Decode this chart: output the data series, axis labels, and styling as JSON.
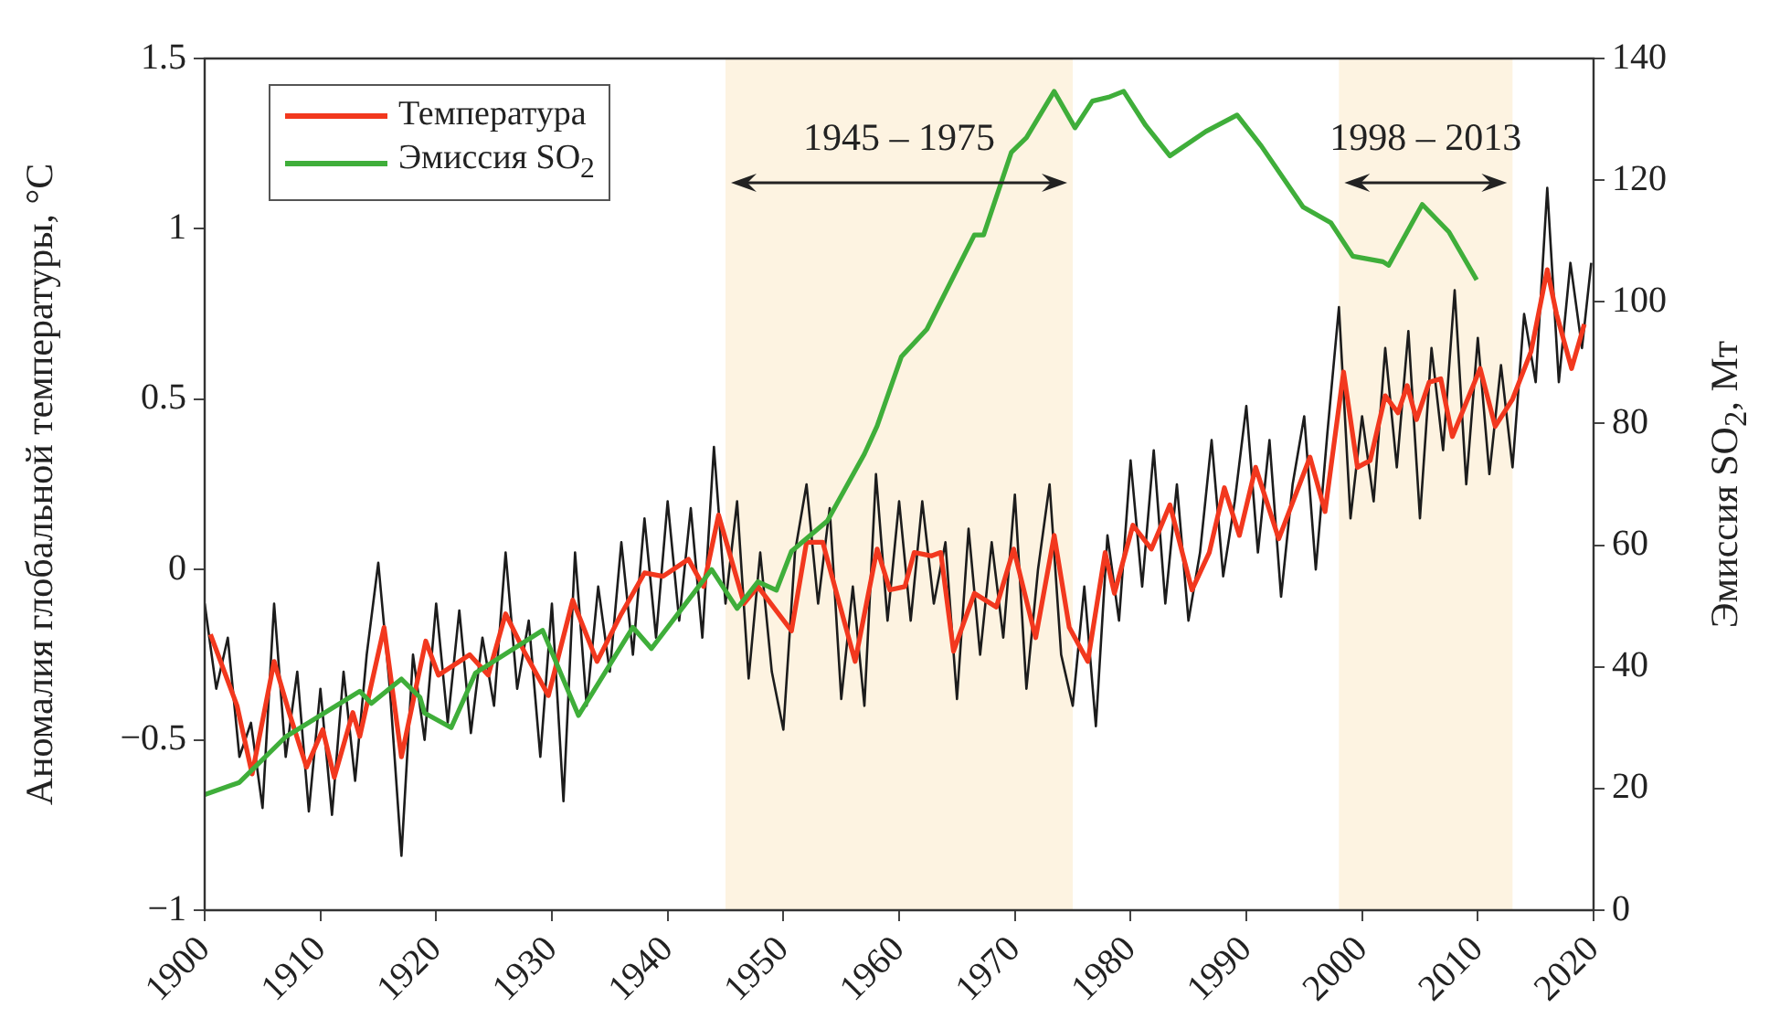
{
  "chart_data": {
    "type": "line",
    "xlabel": null,
    "ylabel": "Аномалия глобальной температуры, °C",
    "y2label": "Эмиссия SO$_{2}$, Мт",
    "xlim": [
      1900,
      2020
    ],
    "xticks": [
      1900,
      1910,
      1920,
      1930,
      1940,
      1950,
      1960,
      1970,
      1980,
      1990,
      2000,
      2010,
      2020
    ],
    "ylim": [
      -1,
      1.5
    ],
    "yticks": [
      {
        "value": -1,
        "label": "−1"
      },
      {
        "value": -0.5,
        "label": "−0.5"
      },
      0,
      0.5,
      1,
      1.5
    ],
    "y2lim": [
      0,
      140
    ],
    "y2ticks": [
      0,
      20,
      40,
      60,
      80,
      100,
      120,
      140
    ],
    "grid": false,
    "legend": "top left",
    "marker": "none",
    "line_style": "solid",
    "bands": [
      {
        "axis": "x",
        "from": 1945,
        "to": 1975,
        "label": "1945 – 1975",
        "color": "#fdf3e1"
      },
      {
        "axis": "x",
        "from": 1998,
        "to": 2013,
        "label": "1998 – 2013",
        "color": "#fdf3e1"
      }
    ],
    "series": [
      {
        "color": "#1c1c1c",
        "x": [
          1900,
          1901,
          1902,
          1903,
          1904,
          1905,
          1906,
          1907,
          1908,
          1909,
          1910,
          1911,
          1912,
          1913,
          1914,
          1915,
          1916,
          1917,
          1918,
          1919,
          1920,
          1921,
          1922,
          1923,
          1924,
          1925,
          1926,
          1927,
          1928,
          1929,
          1930,
          1931,
          1932,
          1933,
          1934,
          1935,
          1936,
          1937,
          1938,
          1939,
          1940,
          1941,
          1942,
          1943,
          1944,
          1945,
          1946,
          1947,
          1948,
          1949,
          1950,
          1951,
          1952,
          1953,
          1954,
          1955,
          1956,
          1957,
          1958,
          1959,
          1960,
          1961,
          1962,
          1963,
          1964,
          1965,
          1966,
          1967,
          1968,
          1969,
          1970,
          1971,
          1972,
          1973,
          1974,
          1975,
          1976,
          1977,
          1978,
          1979,
          1980,
          1981,
          1982,
          1983,
          1984,
          1985,
          1986,
          1987,
          1988,
          1989,
          1990,
          1991,
          1992,
          1993,
          1994,
          1995,
          1996,
          1997,
          1998,
          1999,
          2000,
          2001,
          2002,
          2003,
          2004,
          2005,
          2006,
          2007,
          2008,
          2009,
          2010,
          2011,
          2012,
          2013,
          2014,
          2015,
          2016,
          2017,
          2018,
          2019,
          2019.8
        ],
        "values": [
          -0.1,
          -0.35,
          -0.2,
          -0.55,
          -0.45,
          -0.7,
          -0.1,
          -0.55,
          -0.3,
          -0.71,
          -0.35,
          -0.72,
          -0.3,
          -0.62,
          -0.25,
          0.02,
          -0.35,
          -0.84,
          -0.25,
          -0.5,
          -0.1,
          -0.45,
          -0.12,
          -0.48,
          -0.2,
          -0.4,
          0.05,
          -0.35,
          -0.15,
          -0.55,
          -0.1,
          -0.68,
          0.05,
          -0.4,
          -0.05,
          -0.3,
          0.08,
          -0.25,
          0.15,
          -0.2,
          0.2,
          -0.15,
          0.18,
          -0.2,
          0.36,
          -0.1,
          0.2,
          -0.32,
          0.05,
          -0.3,
          -0.47,
          0.05,
          0.25,
          -0.1,
          0.18,
          -0.38,
          -0.05,
          -0.4,
          0.28,
          -0.15,
          0.2,
          -0.15,
          0.2,
          -0.1,
          0.08,
          -0.38,
          0.12,
          -0.25,
          0.08,
          -0.2,
          0.22,
          -0.35,
          0,
          0.25,
          -0.25,
          -0.4,
          -0.05,
          -0.46,
          0.1,
          -0.15,
          0.32,
          -0.05,
          0.35,
          -0.1,
          0.25,
          -0.15,
          0.05,
          0.38,
          -0.02,
          0.2,
          0.48,
          0.05,
          0.38,
          -0.08,
          0.25,
          0.45,
          0,
          0.4,
          0.77,
          0.15,
          0.45,
          0.2,
          0.65,
          0.3,
          0.7,
          0.15,
          0.65,
          0.35,
          0.82,
          0.25,
          0.68,
          0.28,
          0.6,
          0.3,
          0.75,
          0.55,
          1.12,
          0.55,
          0.9,
          0.65,
          0.9
        ]
      },
      {
        "name": "Температура",
        "color": "#f2381e",
        "x": [
          1900.5,
          1902.8,
          1904.1,
          1906,
          1907.3,
          1908.8,
          1910.2,
          1911.2,
          1912.8,
          1913.4,
          1915.5,
          1917,
          1919.1,
          1920.2,
          1922.9,
          1924.5,
          1926,
          1927.6,
          1929.7,
          1931.8,
          1933.9,
          1936,
          1938,
          1939.6,
          1941.8,
          1943.1,
          1944.4,
          1946.6,
          1947.8,
          1950.7,
          1952,
          1953.4,
          1956.2,
          1958.1,
          1959.2,
          1960.5,
          1961.3,
          1962.8,
          1963.6,
          1964.7,
          1966.5,
          1968.4,
          1969.9,
          1971.8,
          1973.4,
          1974.7,
          1976.3,
          1977.8,
          1978.6,
          1980.2,
          1981.8,
          1983.4,
          1985.3,
          1986.8,
          1988.1,
          1989.4,
          1990.8,
          1992.8,
          1995.5,
          1996.8,
          1998.4,
          1999.6,
          2000.7,
          2002,
          2003.1,
          2003.9,
          2004.7,
          2005.8,
          2006.8,
          2007.8,
          2010.2,
          2011.5,
          2013,
          2014.6,
          2016,
          2016.8,
          2018.1,
          2019.2
        ],
        "values": [
          -0.19,
          -0.4,
          -0.6,
          -0.27,
          -0.42,
          -0.58,
          -0.47,
          -0.61,
          -0.42,
          -0.49,
          -0.17,
          -0.55,
          -0.21,
          -0.31,
          -0.25,
          -0.31,
          -0.13,
          -0.24,
          -0.37,
          -0.09,
          -0.27,
          -0.13,
          -0.01,
          -0.02,
          0.03,
          -0.05,
          0.16,
          -0.1,
          -0.05,
          -0.18,
          0.08,
          0.08,
          -0.27,
          0.06,
          -0.06,
          -0.05,
          0.05,
          0.04,
          0.05,
          -0.24,
          -0.07,
          -0.11,
          0.06,
          -0.2,
          0.1,
          -0.17,
          -0.27,
          0.05,
          -0.07,
          0.13,
          0.06,
          0.19,
          -0.06,
          0.05,
          0.24,
          0.1,
          0.3,
          0.09,
          0.33,
          0.17,
          0.58,
          0.3,
          0.32,
          0.51,
          0.46,
          0.54,
          0.44,
          0.55,
          0.56,
          0.39,
          0.59,
          0.42,
          0.5,
          0.64,
          0.88,
          0.75,
          0.59,
          0.72
        ]
      },
      {
        "name": "Эмиссия SO$_{2}$",
        "color": "#3fae3a",
        "axis": "y2",
        "x": [
          1900,
          1903,
          1907,
          1913.4,
          1914.4,
          1917,
          1918.6,
          1919,
          1921.3,
          1923.4,
          1929.2,
          1932.3,
          1937,
          1938.6,
          1943.8,
          1946,
          1947.8,
          1949.4,
          1950.7,
          1953.8,
          1957,
          1958.1,
          1960.2,
          1962.4,
          1966.5,
          1967.3,
          1969.7,
          1971,
          1973.4,
          1975.2,
          1976.7,
          1978.2,
          1979.4,
          1981.3,
          1983.4,
          1986.5,
          1989.2,
          1991.3,
          1994.9,
          1997.3,
          1999.2,
          2001.8,
          2002.3,
          2005.2,
          2007.5,
          2009.9
        ],
        "values": [
          19,
          21,
          28.5,
          36,
          34,
          38,
          35,
          32.4,
          30,
          39,
          46,
          32,
          46.5,
          43,
          56,
          49.6,
          54,
          52.6,
          59,
          64,
          75,
          79.6,
          91,
          95.5,
          111,
          111,
          124.6,
          127,
          134.6,
          128.6,
          133,
          133.7,
          134.6,
          129,
          124,
          128,
          130.7,
          125.6,
          115.6,
          113,
          107.5,
          106.6,
          106,
          116,
          111.5,
          103.6
        ]
      }
    ]
  }
}
